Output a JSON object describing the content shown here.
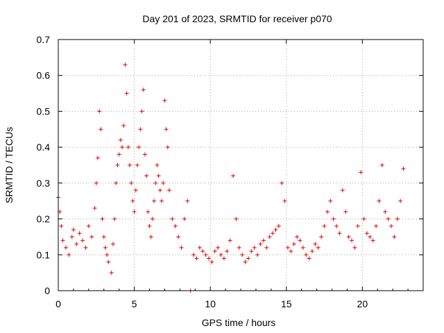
{
  "chart_data": {
    "type": "scatter",
    "title": "Day 201 of 2023, SRMTID for receiver p070",
    "xlabel": "GPS time / hours",
    "ylabel": "SRMTID / TECUs",
    "xlim": [
      0,
      24
    ],
    "ylim": [
      0,
      0.7
    ],
    "xticks": [
      0,
      5,
      10,
      15,
      20
    ],
    "yticks": [
      0,
      0.1,
      0.2,
      0.3,
      0.4,
      0.5,
      0.6,
      0.7
    ],
    "xtick_labels": [
      "0",
      "5",
      "10",
      "15",
      "20"
    ],
    "ytick_labels": [
      "0",
      "0.1",
      "0.2",
      "0.3",
      "0.4",
      "0.5",
      "0.6",
      "0.7"
    ],
    "grid": true,
    "marker": "+",
    "color": "#e00000",
    "series": [
      {
        "name": "SRMTID",
        "x": [
          0.0,
          0.1,
          0.2,
          0.3,
          0.5,
          0.7,
          0.9,
          1.0,
          1.2,
          1.4,
          1.6,
          1.8,
          2.0,
          2.2,
          2.4,
          2.5,
          2.6,
          2.7,
          2.8,
          2.9,
          3.0,
          3.1,
          3.2,
          3.3,
          3.5,
          3.6,
          3.7,
          3.8,
          3.9,
          4.0,
          4.1,
          4.2,
          4.3,
          4.4,
          4.5,
          4.6,
          4.7,
          4.8,
          4.9,
          5.0,
          5.1,
          5.2,
          5.3,
          5.4,
          5.5,
          5.6,
          5.7,
          5.8,
          5.9,
          6.0,
          6.1,
          6.2,
          6.3,
          6.4,
          6.5,
          6.6,
          6.7,
          6.8,
          6.9,
          7.0,
          7.1,
          7.2,
          7.3,
          7.5,
          7.7,
          7.9,
          8.1,
          8.3,
          8.5,
          8.7,
          8.9,
          9.1,
          9.3,
          9.5,
          9.7,
          9.9,
          10.1,
          10.3,
          10.5,
          10.7,
          10.9,
          11.1,
          11.3,
          11.5,
          11.7,
          11.9,
          12.1,
          12.3,
          12.5,
          12.7,
          12.9,
          13.1,
          13.3,
          13.5,
          13.7,
          13.9,
          14.1,
          14.3,
          14.5,
          14.7,
          14.9,
          15.1,
          15.3,
          15.5,
          15.7,
          15.9,
          16.1,
          16.3,
          16.5,
          16.7,
          16.9,
          17.1,
          17.3,
          17.5,
          17.7,
          17.9,
          18.1,
          18.3,
          18.5,
          18.7,
          18.9,
          19.1,
          19.3,
          19.5,
          19.7,
          19.9,
          20.1,
          20.3,
          20.5,
          20.7,
          20.9,
          21.1,
          21.3,
          21.5,
          21.7,
          21.9,
          22.1,
          22.3,
          22.5,
          22.7
        ],
        "y": [
          0.26,
          0.22,
          0.18,
          0.14,
          0.12,
          0.1,
          0.15,
          0.17,
          0.13,
          0.16,
          0.14,
          0.12,
          0.18,
          0.15,
          0.23,
          0.3,
          0.37,
          0.5,
          0.45,
          0.2,
          0.15,
          0.12,
          0.1,
          0.08,
          0.05,
          0.13,
          0.2,
          0.3,
          0.35,
          0.38,
          0.42,
          0.4,
          0.46,
          0.63,
          0.55,
          0.4,
          0.35,
          0.3,
          0.25,
          0.22,
          0.28,
          0.35,
          0.4,
          0.45,
          0.5,
          0.56,
          0.38,
          0.32,
          0.22,
          0.18,
          0.15,
          0.2,
          0.25,
          0.3,
          0.35,
          0.32,
          0.28,
          0.25,
          0.3,
          0.53,
          0.45,
          0.4,
          0.28,
          0.2,
          0.18,
          0.15,
          0.12,
          0.2,
          0.25,
          0.0,
          0.1,
          0.09,
          0.12,
          0.11,
          0.1,
          0.09,
          0.08,
          0.11,
          0.12,
          0.1,
          0.09,
          0.11,
          0.14,
          0.32,
          0.2,
          0.12,
          0.1,
          0.08,
          0.09,
          0.11,
          0.12,
          0.1,
          0.13,
          0.14,
          0.12,
          0.15,
          0.16,
          0.17,
          0.18,
          0.3,
          0.25,
          0.12,
          0.11,
          0.13,
          0.15,
          0.14,
          0.12,
          0.1,
          0.09,
          0.11,
          0.13,
          0.12,
          0.15,
          0.18,
          0.22,
          0.25,
          0.2,
          0.18,
          0.16,
          0.28,
          0.22,
          0.15,
          0.14,
          0.12,
          0.18,
          0.33,
          0.2,
          0.16,
          0.15,
          0.14,
          0.18,
          0.25,
          0.35,
          0.22,
          0.2,
          0.18,
          0.15,
          0.2,
          0.25,
          0.34
        ]
      }
    ]
  }
}
